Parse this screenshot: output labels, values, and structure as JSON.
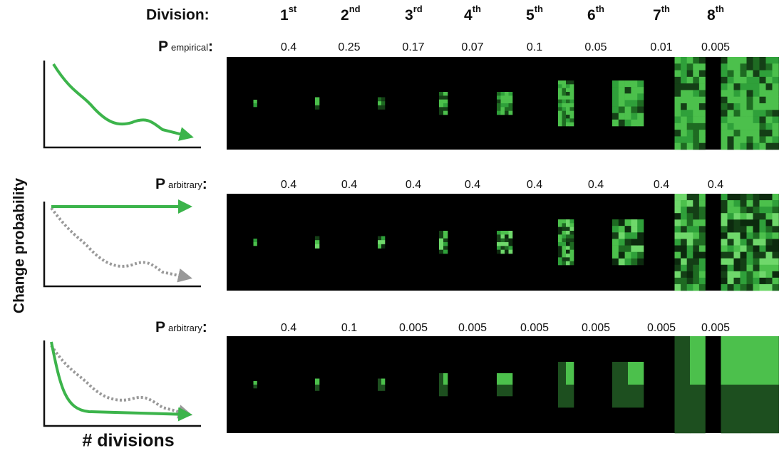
{
  "header": {
    "label": "Division:",
    "ordinals": [
      {
        "number": "1",
        "suffix": "st"
      },
      {
        "number": "2",
        "suffix": "nd"
      },
      {
        "number": "3",
        "suffix": "rd"
      },
      {
        "number": "4",
        "suffix": "th"
      },
      {
        "number": "5",
        "suffix": "th"
      },
      {
        "number": "6",
        "suffix": "th"
      },
      {
        "number": "7",
        "suffix": "th"
      },
      {
        "number": "8",
        "suffix": "th"
      }
    ]
  },
  "rows": [
    {
      "symbol": "P",
      "subscript": "empirical",
      "colon": ":",
      "values": [
        0.4,
        0.25,
        0.17,
        0.07,
        0.1,
        0.05,
        0.01,
        0.005
      ]
    },
    {
      "symbol": "P",
      "subscript": "arbitrary",
      "colon": ":",
      "values": [
        0.4,
        0.4,
        0.4,
        0.4,
        0.4,
        0.4,
        0.4,
        0.4
      ]
    },
    {
      "symbol": "P",
      "subscript": "arbitrary",
      "colon": ":",
      "values": [
        0.4,
        0.1,
        0.005,
        0.005,
        0.005,
        0.005,
        0.005,
        0.005
      ]
    }
  ],
  "y_label": "Change probability",
  "x_label": "# divisions"
}
